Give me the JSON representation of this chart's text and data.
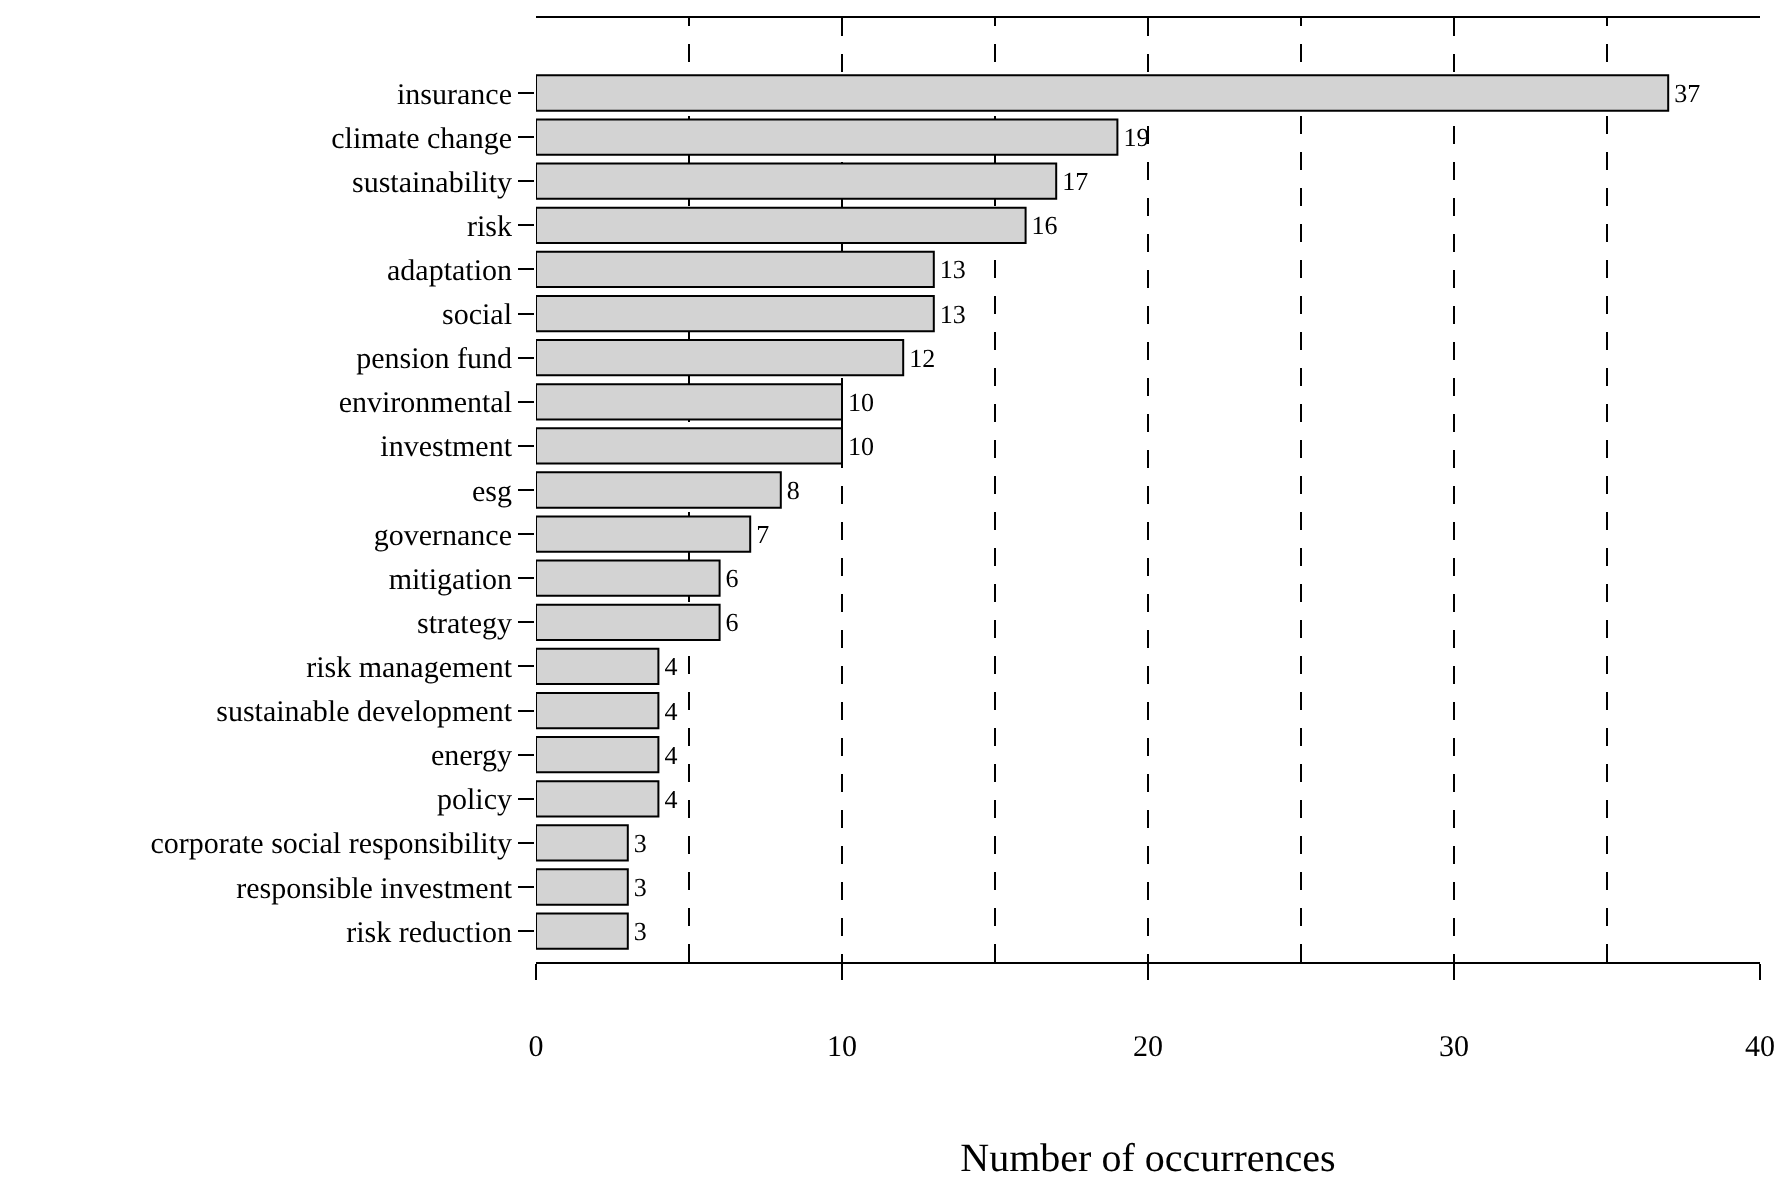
{
  "chart_data": {
    "type": "bar",
    "orientation": "horizontal",
    "xlabel": "Number of occurrences",
    "categories": [
      "insurance",
      "climate change",
      "sustainability",
      "risk",
      "adaptation",
      "social",
      "pension fund",
      "environmental",
      "investment",
      "esg",
      "governance",
      "mitigation",
      "strategy",
      "risk management",
      "sustainable development",
      "energy",
      "policy",
      "corporate social responsibility",
      "responsible investment",
      "risk reduction"
    ],
    "values": [
      37,
      19,
      17,
      16,
      13,
      13,
      12,
      10,
      10,
      8,
      7,
      6,
      6,
      4,
      4,
      4,
      4,
      3,
      3,
      3
    ],
    "color": "#d3d3d3",
    "data_labels": true,
    "xlim": [
      0,
      40
    ],
    "xticks": [
      0,
      10,
      20,
      30,
      40
    ],
    "grid": "x",
    "legend": false,
    "ref_lines": [
      {
        "axis": "x",
        "value": 5,
        "line_style": "dashed"
      },
      {
        "axis": "x",
        "value": 15,
        "line_style": "dashed"
      },
      {
        "axis": "x",
        "value": 25,
        "line_style": "dashed"
      },
      {
        "axis": "x",
        "value": 35,
        "line_style": "dashed"
      }
    ]
  }
}
